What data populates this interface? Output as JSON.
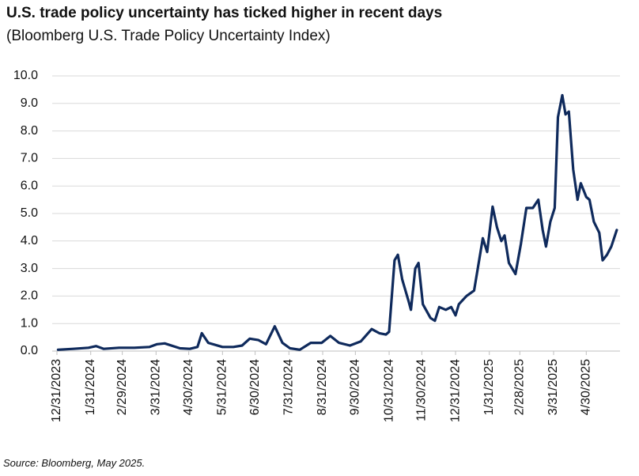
{
  "chart_data": {
    "type": "line",
    "title": "U.S. trade policy uncertainty has ticked higher in recent days",
    "subtitle": "(Bloomberg U.S. Trade Policy Uncertainty Index)",
    "source": "Source: Bloomberg, May 2025.",
    "x": [
      "1/1/2024",
      "1/15/2024",
      "1/29/2024",
      "2/5/2024",
      "2/12/2024",
      "2/26/2024",
      "3/11/2024",
      "3/25/2024",
      "4/1/2024",
      "4/8/2024",
      "4/22/2024",
      "5/1/2024",
      "5/8/2024",
      "5/12/2024",
      "5/18/2024",
      "5/31/2024",
      "6/10/2024",
      "6/18/2024",
      "6/25/2024",
      "7/3/2024",
      "7/10/2024",
      "7/18/2024",
      "7/25/2024",
      "8/1/2024",
      "8/10/2024",
      "8/20/2024",
      "8/30/2024",
      "9/7/2024",
      "9/15/2024",
      "9/25/2024",
      "10/5/2024",
      "10/15/2024",
      "10/22/2024",
      "10/28/2024",
      "10/31/2024",
      "11/5/2024",
      "11/8/2024",
      "11/12/2024",
      "11/18/2024",
      "11/20/2024",
      "11/24/2024",
      "11/27/2024",
      "12/1/2024",
      "12/8/2024",
      "12/12/2024",
      "12/16/2024",
      "12/22/2024",
      "12/27/2024",
      "12/31/2024",
      "1/3/2025",
      "1/10/2025",
      "1/17/2025",
      "1/25/2025",
      "1/29/2025",
      "2/3/2025",
      "2/7/2025",
      "2/11/2025",
      "2/14/2025",
      "2/18/2025",
      "2/24/2025",
      "3/1/2025",
      "3/6/2025",
      "3/12/2025",
      "3/17/2025",
      "3/21/2025",
      "3/24/2025",
      "3/28/2025",
      "4/1/2025",
      "4/4/2025",
      "4/8/2025",
      "4/11/2025",
      "4/14/2025",
      "4/18/2025",
      "4/22/2025",
      "4/25/2025",
      "4/30/2025",
      "5/3/2025",
      "5/7/2025",
      "5/12/2025",
      "5/15/2025",
      "5/19/2025",
      "5/23/2025",
      "5/28/2025"
    ],
    "series": [
      {
        "name": "Bloomberg U.S. Trade Policy Uncertainty Index",
        "color": "#0f2a5c",
        "values": [
          0.05,
          0.08,
          0.12,
          0.18,
          0.08,
          0.12,
          0.12,
          0.15,
          0.25,
          0.28,
          0.1,
          0.08,
          0.15,
          0.65,
          0.3,
          0.15,
          0.15,
          0.2,
          0.45,
          0.4,
          0.25,
          0.9,
          0.3,
          0.1,
          0.05,
          0.3,
          0.3,
          0.55,
          0.3,
          0.2,
          0.35,
          0.8,
          0.65,
          0.6,
          0.7,
          3.3,
          3.5,
          2.6,
          1.8,
          1.5,
          3.0,
          3.2,
          1.7,
          1.2,
          1.1,
          1.6,
          1.5,
          1.6,
          1.3,
          1.7,
          2.0,
          2.2,
          4.1,
          3.6,
          5.25,
          4.5,
          4.0,
          4.2,
          3.2,
          2.8,
          3.9,
          5.2,
          5.2,
          5.5,
          4.4,
          3.8,
          4.7,
          5.2,
          8.5,
          9.3,
          8.6,
          8.7,
          6.6,
          5.5,
          6.1,
          5.6,
          5.5,
          4.7,
          4.3,
          3.3,
          3.5,
          3.8,
          4.4
        ]
      }
    ],
    "xlim": [
      "12/31/2023",
      "5/31/2025"
    ],
    "xticks": [
      "12/31/2023",
      "1/31/2024",
      "2/29/2024",
      "3/31/2024",
      "4/30/2024",
      "5/31/2024",
      "6/30/2024",
      "7/31/2024",
      "8/31/2024",
      "9/30/2024",
      "10/31/2024",
      "11/30/2024",
      "12/31/2024",
      "1/31/2025",
      "2/28/2025",
      "3/31/2025",
      "4/30/2025"
    ],
    "ylim": [
      0,
      10
    ],
    "yticks": [
      {
        "value": 0,
        "label": "0.0"
      },
      {
        "value": 1,
        "label": "1.0"
      },
      {
        "value": 2,
        "label": "2.0"
      },
      {
        "value": 3,
        "label": "3.0"
      },
      {
        "value": 4,
        "label": "4.0"
      },
      {
        "value": 5,
        "label": "5.0"
      },
      {
        "value": 6,
        "label": "6.0"
      },
      {
        "value": 7,
        "label": "7.0"
      },
      {
        "value": 8,
        "label": "8.0"
      },
      {
        "value": 9,
        "label": "9.0"
      },
      {
        "value": 10,
        "label": "10.0"
      }
    ],
    "grid": true
  }
}
